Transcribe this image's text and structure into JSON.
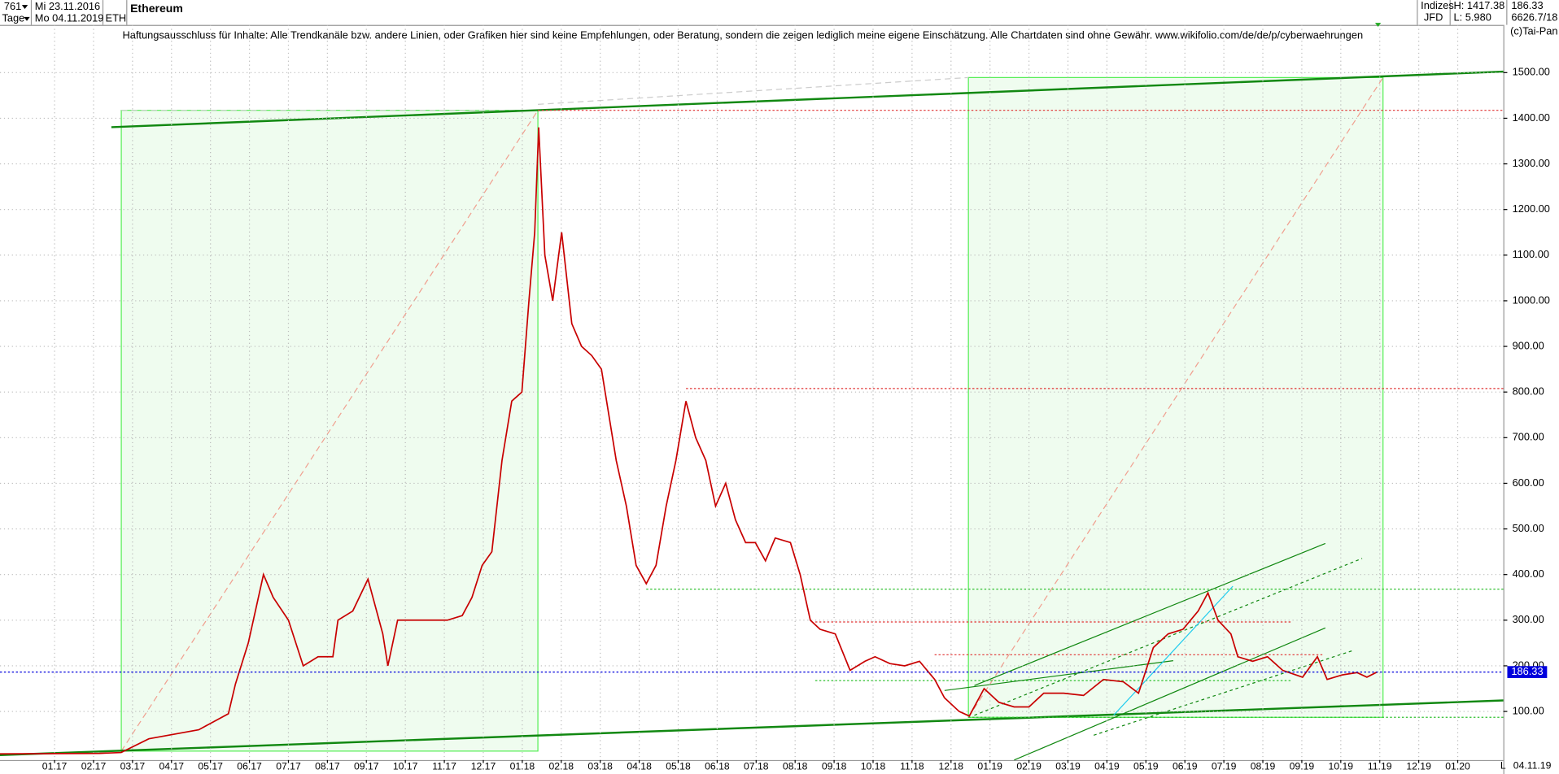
{
  "header": {
    "count": "761",
    "start_date": "Mi 23.11.2016",
    "period": "Tage",
    "end_date": "Mo 04.11.2019",
    "symbol": "ETH",
    "name": "Ethereum",
    "group": "Indizes",
    "source": "JFD",
    "high": "H: 1417.38",
    "low": "L: 5.980",
    "price": "186.33",
    "info": "6626.7/18",
    "copyright": "(c)Tai-Pan"
  },
  "disclaimer": "Haftungsausschluss für Inhalte: Alle Trendkanäle bzw. andere Linien, oder Grafiken hier sind keine Empfehlungen, oder Beratung, sondern die zeigen lediglich meine eigene Einschätzung. Alle Chartdaten sind ohne Gewähr.  www.wikifolio.com/de/de/p/cyberwaehrungen",
  "footer": {
    "mode": "L",
    "date": "04.11.19"
  },
  "chart_data": {
    "type": "line",
    "color": "#c80000",
    "grid": true,
    "last": 186.33,
    "last_color": "#0000dd",
    "x": [
      -1.4,
      1.15,
      1.71,
      2.42,
      3.7,
      4.46,
      4.64,
      4.97,
      5.36,
      5.61,
      6.0,
      6.38,
      6.76,
      7.14,
      7.27,
      7.65,
      8.04,
      8.42,
      8.55,
      8.8,
      9.31,
      9.69,
      10.08,
      10.46,
      10.71,
      10.97,
      11.22,
      11.48,
      11.73,
      11.99,
      12.17,
      12.32,
      12.42,
      12.58,
      12.78,
      13.01,
      13.27,
      13.52,
      13.78,
      14.03,
      14.41,
      14.67,
      14.92,
      15.18,
      15.43,
      15.69,
      15.94,
      16.2,
      16.45,
      16.71,
      16.96,
      17.22,
      17.47,
      17.73,
      17.98,
      18.24,
      18.49,
      18.88,
      19.13,
      19.39,
      19.64,
      20.03,
      20.41,
      20.79,
      21.05,
      21.43,
      21.81,
      22.19,
      22.58,
      22.83,
      23.21,
      23.47,
      23.85,
      24.23,
      24.62,
      25.0,
      25.38,
      25.89,
      26.4,
      26.91,
      27.42,
      27.81,
      28.19,
      28.57,
      28.95,
      29.34,
      29.59,
      29.85,
      30.18,
      30.36,
      30.74,
      31.12,
      31.51,
      32.02,
      32.4,
      32.65,
      33.04,
      33.42,
      33.67,
      33.93
    ],
    "values": [
      7,
      8,
      10,
      40,
      60,
      95,
      160,
      250,
      400,
      350,
      300,
      200,
      220,
      220,
      300,
      320,
      390,
      270,
      200,
      300,
      300,
      300,
      300,
      310,
      350,
      420,
      450,
      650,
      780,
      800,
      1000,
      1150,
      1380,
      1100,
      1000,
      1150,
      950,
      900,
      880,
      850,
      650,
      550,
      420,
      380,
      420,
      550,
      650,
      780,
      700,
      650,
      550,
      600,
      520,
      470,
      470,
      430,
      480,
      470,
      400,
      300,
      280,
      270,
      190,
      210,
      220,
      205,
      200,
      210,
      170,
      130,
      100,
      90,
      150,
      120,
      110,
      110,
      140,
      140,
      135,
      170,
      165,
      140,
      240,
      270,
      280,
      320,
      360,
      300,
      270,
      220,
      210,
      220,
      190,
      175,
      220,
      170,
      180,
      185,
      175,
      186.33
    ],
    "xlim": [
      -1.4,
      37.17
    ],
    "ylim": [
      -6.5,
      1604.6
    ],
    "xticks": [
      {
        "value": 0,
        "label": "01.17"
      },
      {
        "value": 1,
        "label": "02.17"
      },
      {
        "value": 2,
        "label": "03.17"
      },
      {
        "value": 3,
        "label": "04.17"
      },
      {
        "value": 4,
        "label": "05.17"
      },
      {
        "value": 5,
        "label": "06.17"
      },
      {
        "value": 6,
        "label": "07.17"
      },
      {
        "value": 7,
        "label": "08.17"
      },
      {
        "value": 8,
        "label": "09.17"
      },
      {
        "value": 9,
        "label": "10.17"
      },
      {
        "value": 10,
        "label": "11.17"
      },
      {
        "value": 11,
        "label": "12.17"
      },
      {
        "value": 12,
        "label": "01.18"
      },
      {
        "value": 13,
        "label": "02.18"
      },
      {
        "value": 14,
        "label": "03.18"
      },
      {
        "value": 15,
        "label": "04.18"
      },
      {
        "value": 16,
        "label": "05.18"
      },
      {
        "value": 17,
        "label": "06.18"
      },
      {
        "value": 18,
        "label": "07.18"
      },
      {
        "value": 19,
        "label": "08.18"
      },
      {
        "value": 20,
        "label": "09.18"
      },
      {
        "value": 21,
        "label": "10.18"
      },
      {
        "value": 22,
        "label": "11.18"
      },
      {
        "value": 23,
        "label": "12.18"
      },
      {
        "value": 24,
        "label": "01.19"
      },
      {
        "value": 25,
        "label": "02.19"
      },
      {
        "value": 26,
        "label": "03.19"
      },
      {
        "value": 27,
        "label": "04.19"
      },
      {
        "value": 28,
        "label": "05.19"
      },
      {
        "value": 29,
        "label": "06.19"
      },
      {
        "value": 30,
        "label": "07.19"
      },
      {
        "value": 31,
        "label": "08.19"
      },
      {
        "value": 32,
        "label": "09.19"
      },
      {
        "value": 33,
        "label": "10.19"
      },
      {
        "value": 34,
        "label": "11.19"
      },
      {
        "value": 35,
        "label": "12.19"
      },
      {
        "value": 36,
        "label": "01.20"
      }
    ],
    "yticks": [
      {
        "value": 100,
        "label": "100.00"
      },
      {
        "value": 200,
        "label": "200.00"
      },
      {
        "value": 300,
        "label": "300.00"
      },
      {
        "value": 400,
        "label": "400.00"
      },
      {
        "value": 500,
        "label": "500.00"
      },
      {
        "value": 600,
        "label": "600.00"
      },
      {
        "value": 700,
        "label": "700.00"
      },
      {
        "value": 800,
        "label": "800.00"
      },
      {
        "value": 900,
        "label": "900.00"
      },
      {
        "value": 1000,
        "label": "1000.00"
      },
      {
        "value": 1100,
        "label": "1100.00"
      },
      {
        "value": 1200,
        "label": "1200.00"
      },
      {
        "value": 1300,
        "label": "1300.00"
      },
      {
        "value": 1400,
        "label": "1400.00"
      },
      {
        "value": 1500,
        "label": "1500.00"
      }
    ]
  }
}
